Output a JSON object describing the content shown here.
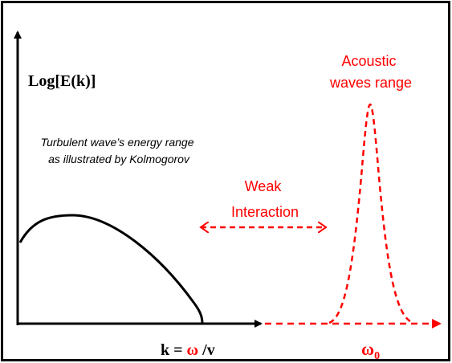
{
  "y_axis_label": "Log[E(k)]",
  "turbulent_label": [
    "Turbulent wave’s energy range",
    "as illustrated by Kolmogorov"
  ],
  "interaction_label": [
    "Weak",
    "Interaction"
  ],
  "acoustic_label": [
    "Acoustic",
    "waves range"
  ],
  "k_label": {
    "lhs": "k =",
    "omega": "ω",
    "rhs": "/v"
  },
  "omega0_label": {
    "symbol": "ω",
    "subscript": "0"
  }
}
